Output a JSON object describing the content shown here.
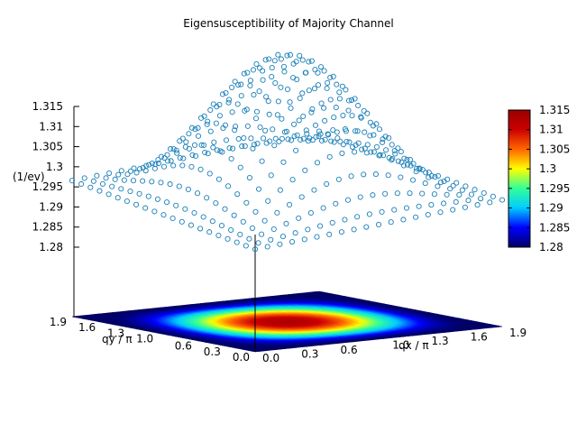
{
  "chart_data": {
    "type": "surface-scatter-3d",
    "title": "Eigensusceptibility of Majority Channel",
    "zlabel": "(1/ev)",
    "xlabel": "qx / π",
    "ylabel": "qy / π",
    "x_ticks": [
      "0.0",
      "0.3",
      "0.6",
      "1.0",
      "1.3",
      "1.6",
      "1.9"
    ],
    "y_ticks": [
      "0.0",
      "0.3",
      "0.6",
      "1.0",
      "1.3",
      "1.6",
      "1.9"
    ],
    "z_ticks": [
      "1.28",
      "1.285",
      "1.29",
      "1.295",
      "1.3",
      "1.305",
      "1.31",
      "1.315"
    ],
    "x_range": [
      0,
      1.9
    ],
    "y_range": [
      0,
      1.9
    ],
    "z_range": [
      1.28,
      1.315
    ],
    "colorbar": {
      "ticks": [
        "1.28",
        "1.285",
        "1.29",
        "1.295",
        "1.3",
        "1.305",
        "1.31",
        "1.315"
      ],
      "range": [
        1.28,
        1.315
      ],
      "palette": [
        "#000066",
        "#0000ff",
        "#00ccff",
        "#33ff99",
        "#ffff00",
        "#ff6600",
        "#cc0000",
        "#990000"
      ]
    },
    "surface": {
      "grid_n": 20,
      "model": "z = 1.2795 + 0.0335 * sin(pi*qx/1.9)^1.6 * sin(pi*qy/1.9)^1.6",
      "z_min": 1.2795,
      "z_max": 1.313
    },
    "point_color": "#1a7fb8",
    "grid": false,
    "legend": "none"
  }
}
